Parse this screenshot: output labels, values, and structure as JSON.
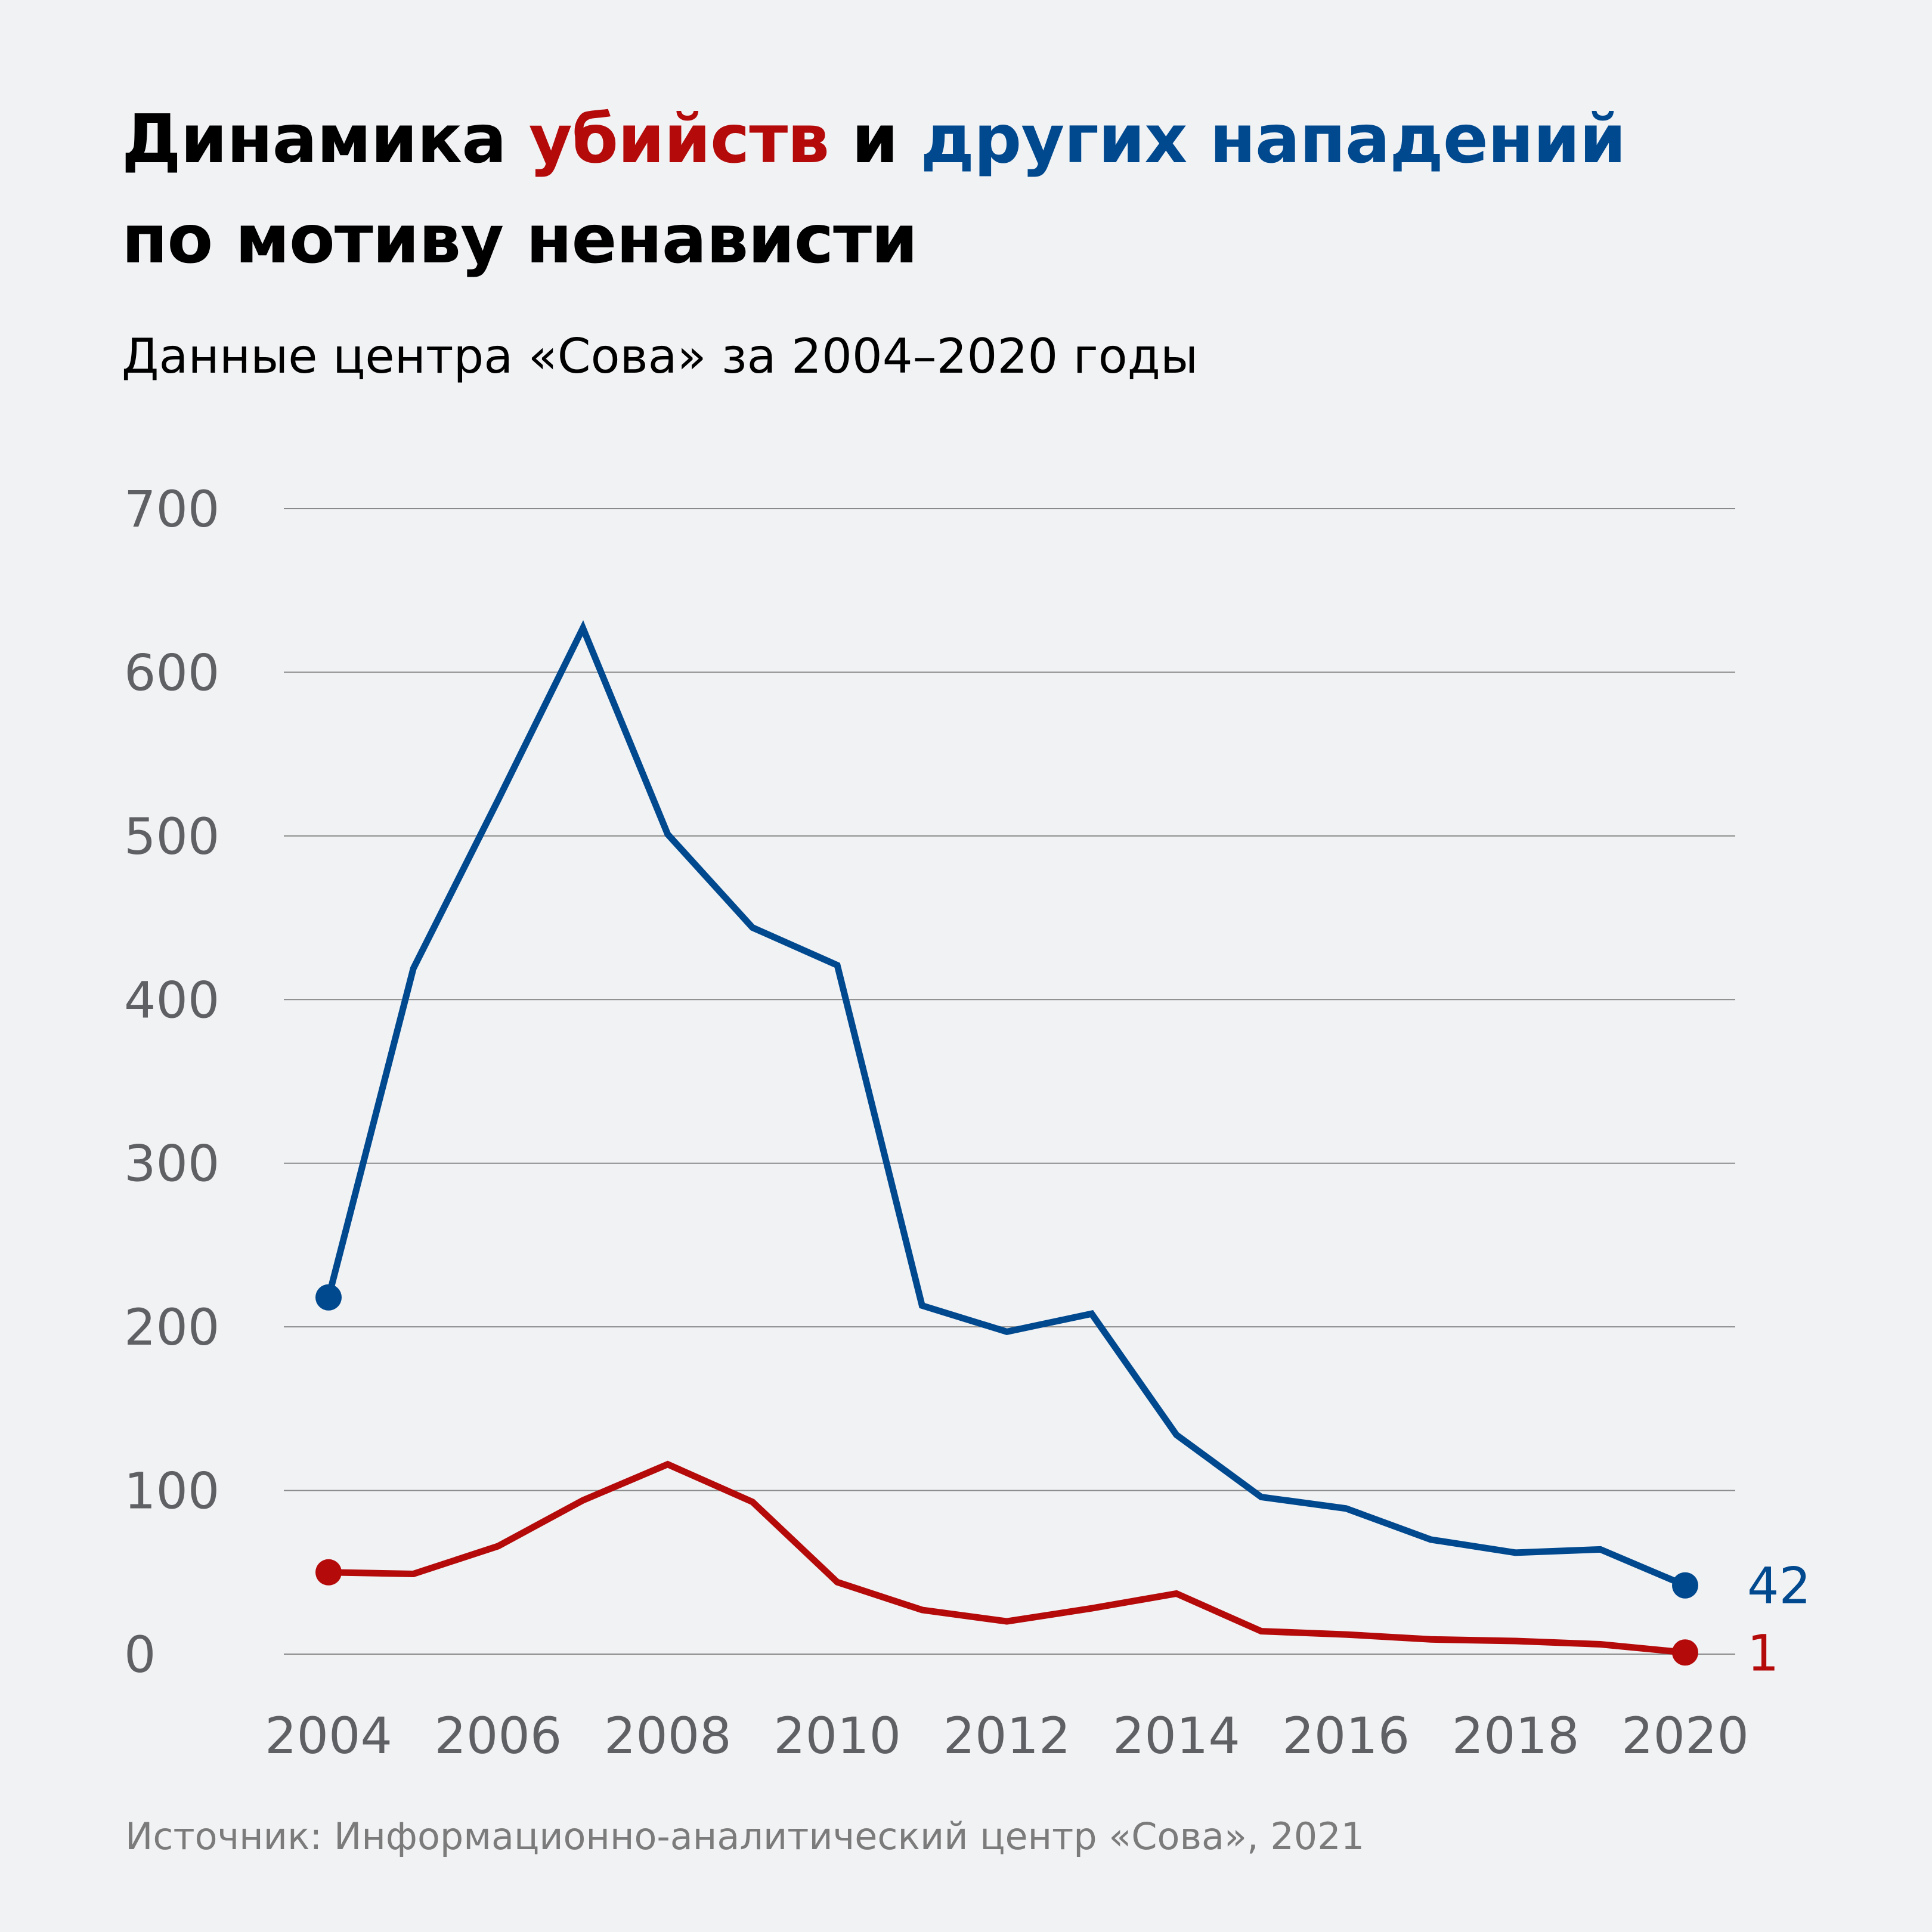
{
  "title": {
    "part1": "Динамика ",
    "part_killings": "убийств",
    "part_and": " и ",
    "part_attacks": "других нападений",
    "line2": "по мотиву ненависти"
  },
  "subtitle": "Данные центра «Сова» за 2004–2020 годы",
  "source": "Источник: Информационно-аналитический центр «Сова», 2021",
  "colors": {
    "killings": "#b50a0a",
    "attacks": "#00498f",
    "grid": "#8a8a8a",
    "axis_text": "#5f6063",
    "background": "#f1f2f4"
  },
  "chart_data": {
    "type": "line",
    "title": "Динамика убийств и других нападений по мотиву ненависти",
    "xlabel": "",
    "ylabel": "",
    "xlim": [
      2004,
      2020
    ],
    "ylim": [
      0,
      700
    ],
    "yticks": [
      0,
      100,
      200,
      300,
      400,
      500,
      600,
      700
    ],
    "xticks": [
      2004,
      2006,
      2008,
      2010,
      2012,
      2014,
      2016,
      2018,
      2020
    ],
    "grid": true,
    "x": [
      2004,
      2005,
      2006,
      2007,
      2008,
      2009,
      2010,
      2011,
      2012,
      2013,
      2014,
      2015,
      2016,
      2017,
      2018,
      2019,
      2020
    ],
    "series": [
      {
        "name": "другие нападения",
        "key": "attacks",
        "values": [
          218,
          419,
          522,
          627,
          501,
          444,
          421,
          213,
          197,
          208,
          134,
          96,
          89,
          70,
          62,
          64,
          42
        ],
        "end_label": "42"
      },
      {
        "name": "убийства",
        "key": "killings",
        "values": [
          50,
          49,
          66,
          94,
          116,
          93,
          44,
          27,
          20,
          28,
          37,
          14,
          12,
          9,
          8,
          6,
          1
        ],
        "end_label": "1"
      }
    ]
  }
}
